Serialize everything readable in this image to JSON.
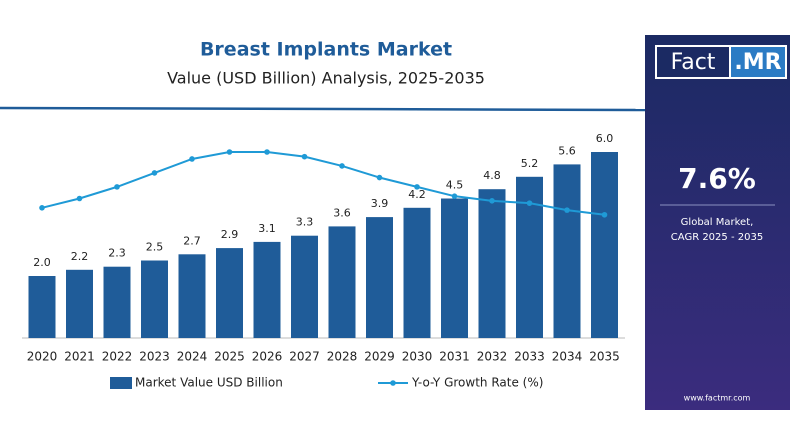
{
  "chart_data": {
    "type": "bar",
    "title": "Breast Implants Market",
    "subtitle": "Value (USD Billion) Analysis, 2025-2035",
    "categories": [
      "2020",
      "2021",
      "2022",
      "2023",
      "2024",
      "2025",
      "2026",
      "2027",
      "2028",
      "2029",
      "2030",
      "2031",
      "2032",
      "2033",
      "2034",
      "2035"
    ],
    "series": [
      {
        "name": "Market Value USD Billion",
        "color": "#1f5c99",
        "values": [
          2.0,
          2.2,
          2.3,
          2.5,
          2.7,
          2.9,
          3.1,
          3.3,
          3.6,
          3.9,
          4.2,
          4.5,
          4.8,
          5.2,
          5.6,
          6.0
        ],
        "value_labels": [
          "2.0",
          "2.2",
          "2.3",
          "2.5",
          "2.7",
          "2.9",
          "3.1",
          "3.3",
          "3.6",
          "3.9",
          "4.2",
          "4.5",
          "4.8",
          "5.2",
          "5.6",
          "6.0"
        ]
      },
      {
        "name": "Y-o-Y Growth Rate (%)",
        "type": "line",
        "axis": "y2",
        "color": "#1f9ad6",
        "values": [
          9.6,
          10.0,
          10.5,
          11.1,
          11.7,
          12.0,
          12.0,
          11.8,
          11.4,
          10.9,
          10.5,
          10.1,
          9.9,
          9.8,
          9.5,
          9.3
        ]
      }
    ],
    "ylim": [
      0,
      6
    ],
    "y2lim": [
      4,
      12
    ],
    "legend": "bottom"
  },
  "sidebar": {
    "logo": {
      "left": "Fact",
      "right": ".MR"
    },
    "cagr": "7.6%",
    "caption": [
      "Global Market,",
      "CAGR 2025 - 2035"
    ],
    "website": "www.factmr.com"
  }
}
